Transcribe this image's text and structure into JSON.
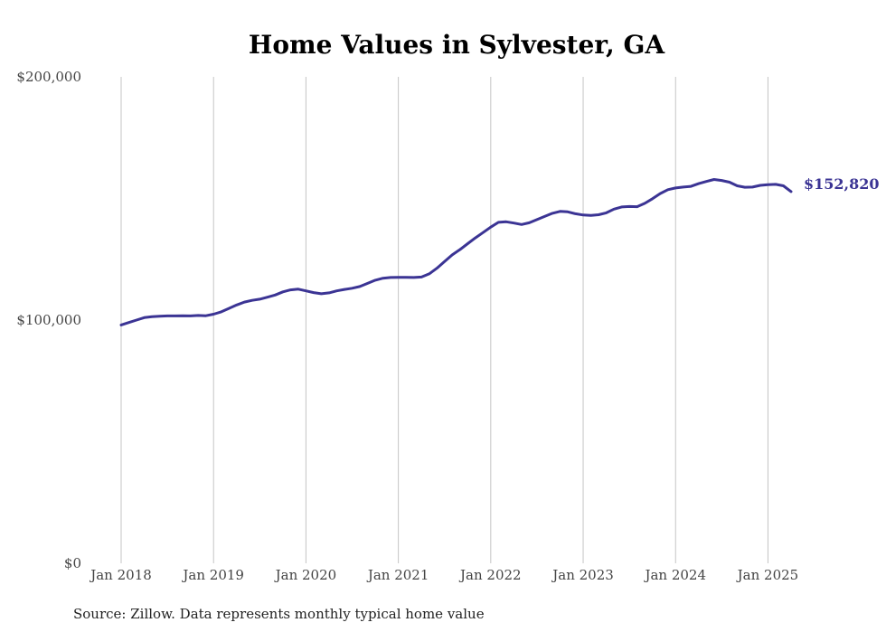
{
  "chart_data": {
    "type": "line",
    "title": "Home Values in Sylvester, GA",
    "xlabel": "",
    "ylabel": "",
    "ylim": [
      0,
      200000
    ],
    "yticks": [
      0,
      100000,
      200000
    ],
    "ytick_labels": [
      "$0",
      "$100,000",
      "$200,000"
    ],
    "xticks": [
      "2018-01",
      "2019-01",
      "2020-01",
      "2021-01",
      "2022-01",
      "2023-01",
      "2024-01",
      "2025-01"
    ],
    "xtick_labels": [
      "Jan 2018",
      "Jan 2019",
      "Jan 2020",
      "Jan 2021",
      "Jan 2022",
      "Jan 2023",
      "Jan 2024",
      "Jan 2025"
    ],
    "grid": "vertical",
    "line_color": "#3b3494",
    "series": [
      {
        "x": [
          "2018-01",
          "2018-02",
          "2018-03",
          "2018-04",
          "2018-05",
          "2018-06",
          "2018-07",
          "2018-08",
          "2018-09",
          "2018-10",
          "2018-11",
          "2018-12",
          "2019-01",
          "2019-02",
          "2019-03",
          "2019-04",
          "2019-05",
          "2019-06",
          "2019-07",
          "2019-08",
          "2019-09",
          "2019-10",
          "2019-11",
          "2019-12",
          "2020-01",
          "2020-02",
          "2020-03",
          "2020-04",
          "2020-05",
          "2020-06",
          "2020-07",
          "2020-08",
          "2020-09",
          "2020-10",
          "2020-11",
          "2020-12",
          "2021-01",
          "2021-02",
          "2021-03",
          "2021-04",
          "2021-05",
          "2021-06",
          "2021-07",
          "2021-08",
          "2021-09",
          "2021-10",
          "2021-11",
          "2021-12",
          "2022-01",
          "2022-02",
          "2022-03",
          "2022-04",
          "2022-05",
          "2022-06",
          "2022-07",
          "2022-08",
          "2022-09",
          "2022-10",
          "2022-11",
          "2022-12",
          "2023-01",
          "2023-02",
          "2023-03",
          "2023-04",
          "2023-05",
          "2023-06",
          "2023-07",
          "2023-08",
          "2023-09",
          "2023-10",
          "2023-11",
          "2023-12",
          "2024-01",
          "2024-02",
          "2024-03",
          "2024-04",
          "2024-05",
          "2024-06",
          "2024-07",
          "2024-08",
          "2024-09",
          "2024-10",
          "2024-11",
          "2024-12",
          "2025-01",
          "2025-02",
          "2025-03",
          "2025-04"
        ],
        "values": [
          98000,
          99000,
          100000,
          101000,
          101400,
          101600,
          101700,
          101700,
          101800,
          101700,
          101900,
          101800,
          102400,
          103400,
          104800,
          106200,
          107400,
          108100,
          108600,
          109400,
          110300,
          111600,
          112400,
          112700,
          112000,
          111300,
          110800,
          111200,
          112000,
          112600,
          113100,
          113800,
          115100,
          116400,
          117200,
          117500,
          117600,
          117600,
          117500,
          117700,
          119000,
          121300,
          124100,
          126800,
          129000,
          131400,
          133800,
          136000,
          138200,
          140200,
          140400,
          139900,
          139300,
          140000,
          141300,
          142600,
          143900,
          144700,
          144500,
          143700,
          143200,
          143000,
          143300,
          144100,
          145600,
          146500,
          146700,
          146600,
          148000,
          149900,
          152000,
          153600,
          154300,
          154700,
          155000,
          156100,
          157000,
          157800,
          157400,
          156700,
          155200,
          154600,
          154700,
          155400,
          155700,
          155800,
          155200,
          152820
        ]
      }
    ],
    "end_label": "$152,820",
    "source": "Source: Zillow. Data represents monthly typical home value"
  }
}
